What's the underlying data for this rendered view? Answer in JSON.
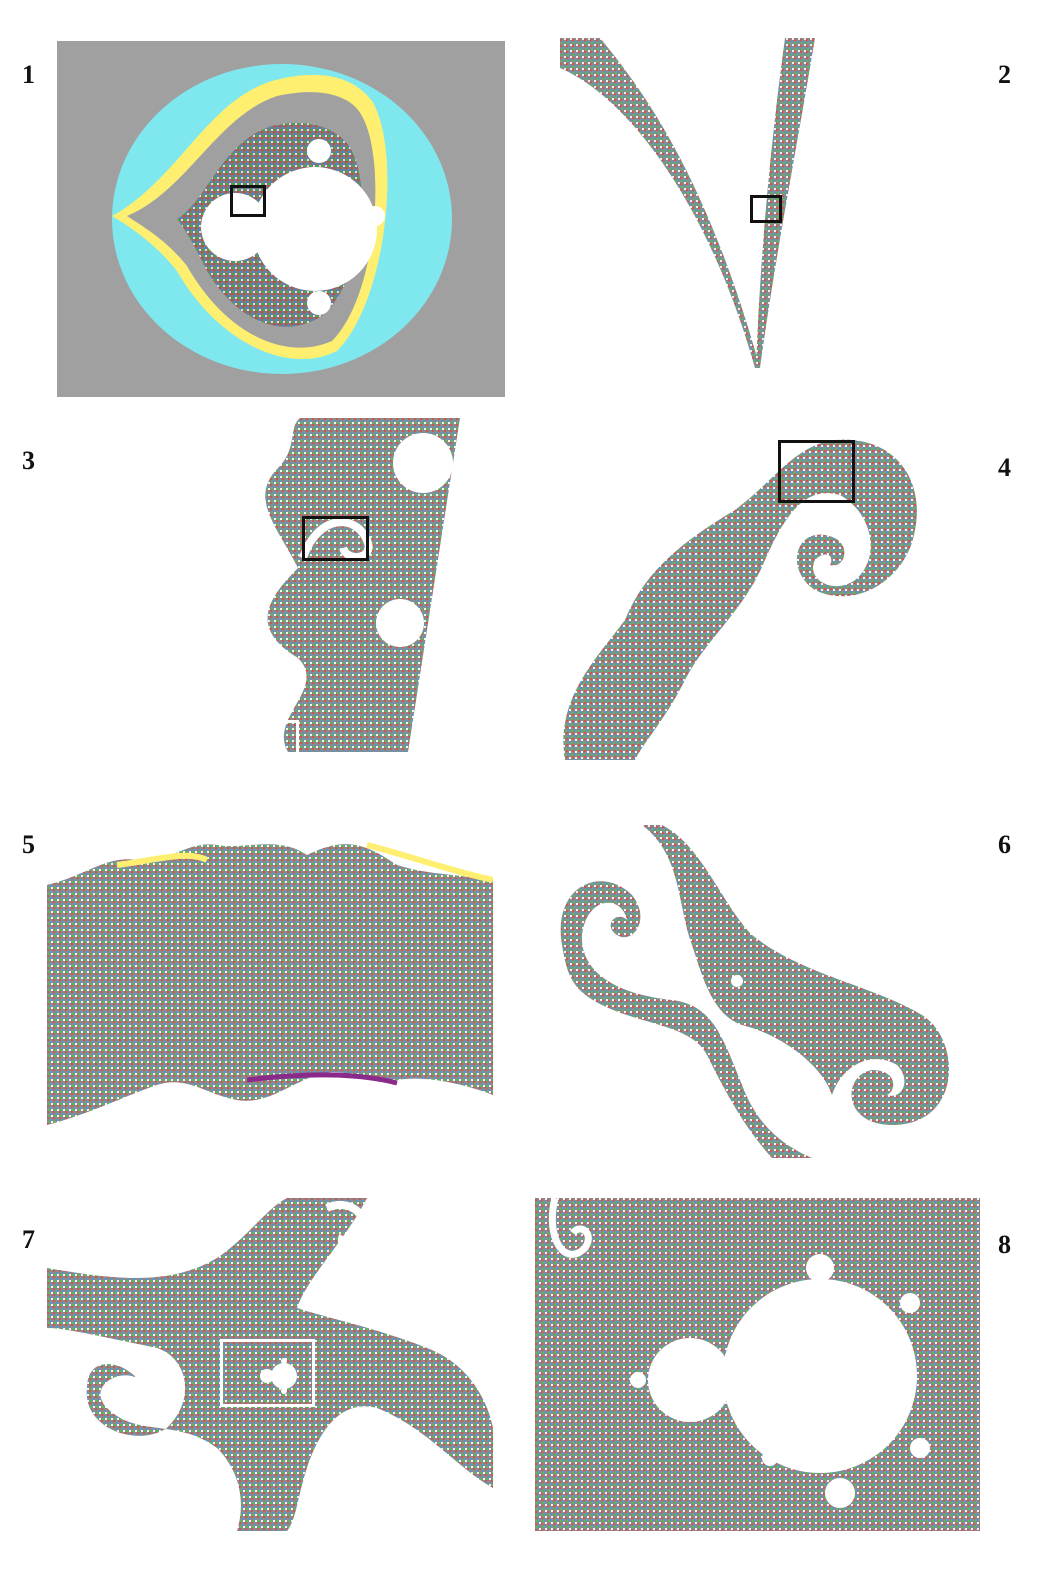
{
  "panels": [
    {
      "label": "1"
    },
    {
      "label": "2"
    },
    {
      "label": "3"
    },
    {
      "label": "4"
    },
    {
      "label": "5"
    },
    {
      "label": "6"
    },
    {
      "label": "7"
    },
    {
      "label": "8"
    }
  ],
  "colors": {
    "background": "#ffffff",
    "panel1_bg": "#a0a0a0",
    "cyan": "#7fe8ee",
    "yellow": "#ffef70",
    "fractal_gray": "#8a8a8a",
    "box_black": "#111111",
    "box_white": "#ffffff"
  }
}
